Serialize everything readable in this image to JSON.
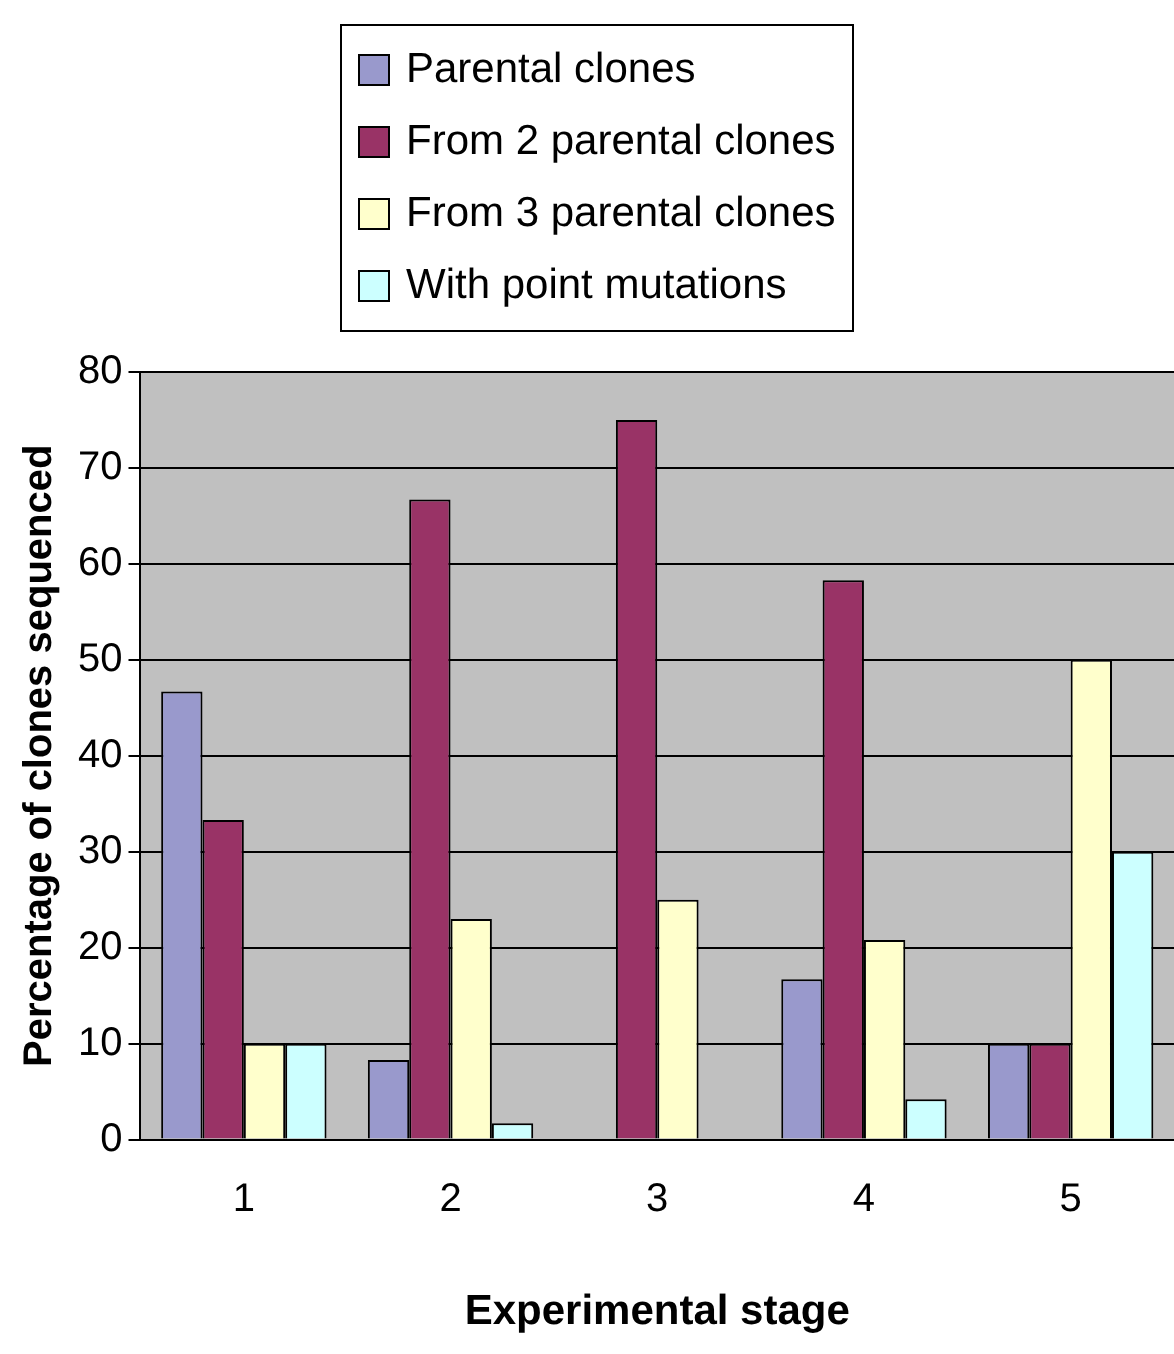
{
  "chart_data": {
    "type": "bar",
    "xlabel": "Experimental stage",
    "ylabel": "Percentage of clones sequenced",
    "categories": [
      "1",
      "2",
      "3",
      "4",
      "5"
    ],
    "series": [
      {
        "name": "Parental clones",
        "color": "#9999cc",
        "values": [
          46.7,
          8.3,
          0,
          16.7,
          10
        ]
      },
      {
        "name": "From 2 parental clones",
        "color": "#993366",
        "values": [
          33.3,
          66.7,
          75,
          58.3,
          10
        ]
      },
      {
        "name": "From 3 parental clones",
        "color": "#ffffcc",
        "values": [
          10,
          23,
          25,
          20.8,
          50
        ]
      },
      {
        "name": "With point mutations",
        "color": "#ccffff",
        "values": [
          10,
          1.7,
          0,
          4.2,
          30
        ]
      }
    ],
    "ylim": [
      0,
      80
    ],
    "yticks": [
      0,
      10,
      20,
      30,
      40,
      50,
      60,
      70,
      80
    ],
    "grid": "y",
    "legend": "top"
  }
}
